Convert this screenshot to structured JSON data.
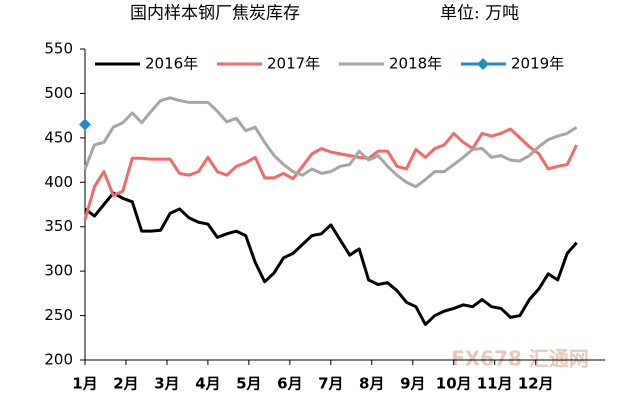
{
  "chart_data": {
    "type": "line",
    "title": "国内样本钢厂焦炭库存",
    "subtitle": "单位: 万吨",
    "watermark": "FX678 汇通网",
    "x": [
      1,
      2,
      3,
      4,
      5,
      6,
      7,
      8,
      9,
      10,
      11,
      12,
      13,
      14,
      15,
      16,
      17,
      18,
      19,
      20,
      21,
      22,
      23,
      24,
      25,
      26,
      27,
      28,
      29,
      30,
      31,
      32,
      33,
      34,
      35,
      36,
      37,
      38,
      39,
      40,
      41,
      42,
      43,
      44,
      45,
      46,
      47,
      48,
      49,
      50,
      51,
      52,
      53
    ],
    "xlim": [
      1,
      56
    ],
    "xticks": [
      {
        "value": 1,
        "label": "1月"
      },
      {
        "value": 5.33,
        "label": "2月"
      },
      {
        "value": 9.67,
        "label": "3月"
      },
      {
        "value": 14,
        "label": "4月"
      },
      {
        "value": 18.33,
        "label": "5月"
      },
      {
        "value": 22.67,
        "label": "6月"
      },
      {
        "value": 27,
        "label": "7月"
      },
      {
        "value": 31.33,
        "label": "8月"
      },
      {
        "value": 35.67,
        "label": "9月"
      },
      {
        "value": 40,
        "label": "10月"
      },
      {
        "value": 44.33,
        "label": "11月"
      },
      {
        "value": 48.67,
        "label": "12月"
      }
    ],
    "ylim": [
      200,
      550
    ],
    "yticks": [
      200,
      250,
      300,
      350,
      400,
      450,
      500,
      550
    ],
    "grid": false,
    "legend": "top",
    "series": [
      {
        "name": "2016年",
        "color": "#000000",
        "values": [
          370,
          362,
          375,
          388,
          382,
          378,
          345,
          345,
          346,
          365,
          370,
          360,
          355,
          353,
          338,
          342,
          345,
          340,
          310,
          288,
          298,
          315,
          320,
          330,
          340,
          342,
          352,
          335,
          318,
          325,
          290,
          285,
          287,
          278,
          265,
          260,
          240,
          250,
          255,
          258,
          262,
          260,
          268,
          260,
          258,
          248,
          250,
          268,
          280,
          297,
          290,
          320,
          332
        ]
      },
      {
        "name": "2017年",
        "color": "#f06a6a",
        "values": [
          358,
          395,
          412,
          385,
          390,
          427,
          427,
          426,
          426,
          426,
          410,
          408,
          412,
          428,
          412,
          408,
          418,
          422,
          428,
          405,
          405,
          410,
          404,
          418,
          432,
          438,
          434,
          432,
          430,
          428,
          427,
          435,
          435,
          418,
          415,
          437,
          428,
          438,
          442,
          455,
          445,
          438,
          455,
          452,
          455,
          460,
          450,
          440,
          432,
          415,
          418,
          420,
          442
        ]
      },
      {
        "name": "2018年",
        "color": "#a6a6a6",
        "values": [
          415,
          442,
          445,
          462,
          467,
          478,
          467,
          480,
          492,
          495,
          492,
          490,
          490,
          490,
          480,
          468,
          472,
          458,
          462,
          445,
          430,
          420,
          412,
          408,
          415,
          410,
          412,
          418,
          420,
          435,
          425,
          430,
          418,
          408,
          400,
          395,
          403,
          412,
          412,
          420,
          428,
          437,
          438,
          428,
          430,
          425,
          424,
          430,
          440,
          448,
          452,
          455,
          462
        ]
      },
      {
        "name": "2019年",
        "color": "#1f8fc1",
        "marker": "diamond",
        "x": [
          1
        ],
        "values": [
          465
        ]
      }
    ]
  }
}
